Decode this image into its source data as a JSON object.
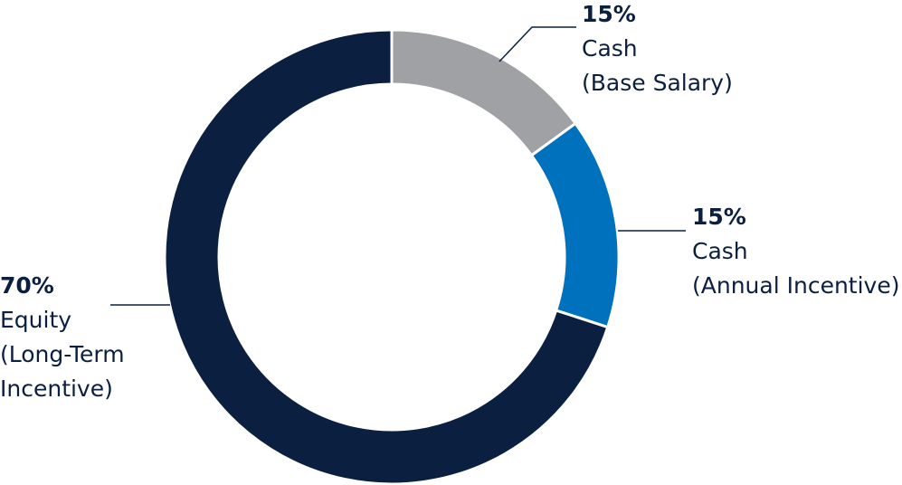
{
  "chart_data": {
    "type": "pie",
    "style": "donut",
    "slices": [
      {
        "value": 15,
        "percent_label": "15%",
        "label_lines": [
          "Cash",
          "(Base Salary)"
        ],
        "color": "#a0a1a5"
      },
      {
        "value": 15,
        "percent_label": "15%",
        "label_lines": [
          "Cash",
          "(Annual Incentive)"
        ],
        "color": "#0071bc"
      },
      {
        "value": 70,
        "percent_label": "70%",
        "label_lines": [
          "Equity",
          "(Long-Term",
          "Incentive)"
        ],
        "color": "#0b1f40"
      }
    ],
    "leader_line_color": "#0b1f40"
  }
}
